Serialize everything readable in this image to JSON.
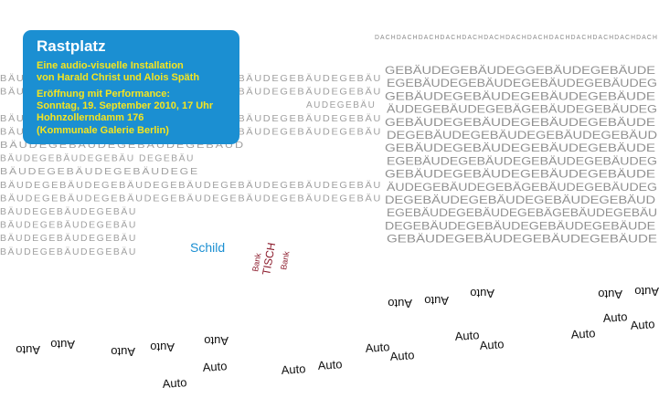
{
  "info": {
    "title": "Rastplatz",
    "lines": [
      "Eine audio-visuelle Installation",
      "von Harald Christ und Alois Späth",
      "Eröffnung mit Performance:",
      "Sonntag, 19. September 2010, 17 Uhr",
      "Hohnzollerndamm 176",
      "(Kommunale Galerie Berlin)"
    ]
  },
  "roof": "DACHDACHDACHDACHDACHDACHDACHDACHDACHDACHDACHDACHDACH",
  "building_left": [
    "BÄUDEGEBÄUDEGEBÄUDEGEBÄUDEGEBÄUDEGEBÄUDEGEBÄU",
    "BÄUDEGEBÄUDEGEBÄUDEGEBÄUDEGEBÄUDEGEBÄUDEGEBÄU",
    "AUDEGEBÄU",
    "BÄUDEGEBÄUDEGEBÄUDEGEBÄUDEGEBÄUDEGEBÄUDEGEBÄU",
    "BÄUDEGEBÄUDEGEBÄUDEGEBÄUDEGEBÄUDEGEBÄUDEGEBÄU",
    "BÄUDEGEBÄUDEGEBÄUDEGEBÄUD",
    "BÄUDEGEBÄUDEGEBÄU DEGEBÄU",
    "BÄUDEGEBÄUDEGEBÄUDEGE",
    "BÄUDEGEBÄUDEGEBÄUDEGEBÄUDEGEBÄUDEGEBÄUDEGEBÄU",
    "BÄUDEGEBÄUDEGEBÄUDEGEBÄUDEGEBÄUDEGEBÄUDEGEBÄU",
    "BÄUDEGEBÄUDEGEBÄU",
    "BÄUDEGEBÄUDEGEBÄU",
    "BÄUDEGEBÄUDEGEBÄU",
    "BÄUDEGEBÄUDEGEBÄU"
  ],
  "building_right": [
    "GEBÄUDEGEBÄUDEGGEBÄUDEGEBÄUDE",
    "EGEBÄUDEGEBÄUDEGEBÄUDEGEBÄUDEG",
    "GEBÄUDEGEBÄUDEGEBÄUDEGEBÄUDE",
    "ÄUDEGEBÄUDEGEBÄGEBÄUDEGEBÄUDEG",
    "GEBÄUDEGEBÄUDEGEBÄUDEGEBÄUDE",
    "DEGEBÄUDEGEBÄUDEGEBÄUDEGEBÄUD",
    "GEBÄUDEGEBÄUDEGEBÄUDEGEBÄUDE",
    "EGEBÄUDEGEBÄUDEGEBÄUDEGEBÄUDEG",
    "GEBÄUDEGEBÄUDEGEBÄUDEGEBÄUDE",
    "ÄUDEGEBÄUDEGEBÄGEBÄUDEGEBÄUDEG",
    "DEGEBÄUDEGEBÄUDEGEBÄUDEGEBÄUD",
    "EGEBÄUDEGEBÄUDEGEBÄGEBÄUDEGEBÄU",
    "DEGEBÄUDEGEBÄUDEGEBÄUDEGEBÄUDE",
    "GEBÄUDEGEBÄUDEGEBÄUDEGEBÄUDE"
  ],
  "sign": "Schild",
  "table": {
    "label": "TISCH",
    "benches": [
      "Bank",
      "Bank"
    ]
  },
  "cars": [
    {
      "label": "Auto",
      "flipped": true
    },
    {
      "label": "Auto",
      "flipped": true
    },
    {
      "label": "Auto",
      "flipped": true
    },
    {
      "label": "Auto",
      "flipped": true
    },
    {
      "label": "Auto",
      "flipped": true
    },
    {
      "label": "Auto",
      "flipped": true
    },
    {
      "label": "Auto",
      "flipped": true
    },
    {
      "label": "Auto",
      "flipped": true
    },
    {
      "label": "Auto",
      "flipped": true
    },
    {
      "label": "Auto",
      "flipped": true
    },
    {
      "label": "Auto",
      "flipped": false
    },
    {
      "label": "Auto",
      "flipped": false
    },
    {
      "label": "Auto",
      "flipped": false
    },
    {
      "label": "Auto",
      "flipped": false
    },
    {
      "label": "Auto",
      "flipped": false
    },
    {
      "label": "Auto",
      "flipped": false
    },
    {
      "label": "Auto",
      "flipped": false
    },
    {
      "label": "Auto",
      "flipped": false
    },
    {
      "label": "Auto",
      "flipped": false
    },
    {
      "label": "Auto",
      "flipped": false
    },
    {
      "label": "Auto",
      "flipped": false
    }
  ]
}
